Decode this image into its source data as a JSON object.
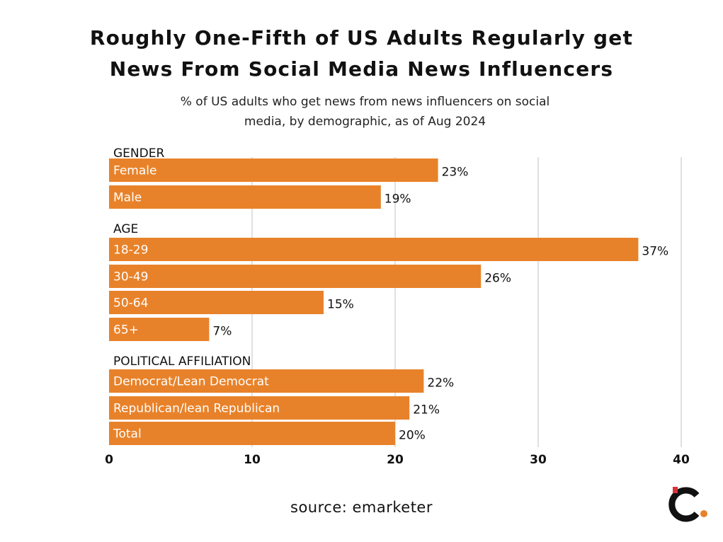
{
  "title_lines": [
    "Roughly One-Fifth of US Adults Regularly get",
    "News From Social Media News Influencers"
  ],
  "subtitle_lines": [
    "% of US adults who get news from news influencers on social",
    "media, by demographic, as of Aug 2024"
  ],
  "source": "source: emarketer",
  "colors": {
    "bar": "#E8822A",
    "grid": "#cccccc",
    "logo_dark": "#111111",
    "logo_orange": "#E8822A",
    "logo_red": "#D9323A"
  },
  "chart_data": {
    "type": "bar",
    "orientation": "horizontal",
    "xlim": [
      0,
      40
    ],
    "xticks": [
      0,
      10,
      20,
      30,
      40
    ],
    "grid": true,
    "groups": [
      {
        "name": "GENDER",
        "items": [
          {
            "label": "Female",
            "value": 23,
            "value_label": "23%"
          },
          {
            "label": "Male",
            "value": 19,
            "value_label": "19%"
          }
        ]
      },
      {
        "name": "AGE",
        "items": [
          {
            "label": "18-29",
            "value": 37,
            "value_label": "37%"
          },
          {
            "label": "30-49",
            "value": 26,
            "value_label": "26%"
          },
          {
            "label": "50-64",
            "value": 15,
            "value_label": "15%"
          },
          {
            "label": "65+",
            "value": 7,
            "value_label": "7%"
          }
        ]
      },
      {
        "name": "POLITICAL AFFILIATION",
        "items": [
          {
            "label": "Democrat/Lean Democrat",
            "value": 22,
            "value_label": "22%"
          },
          {
            "label": "Republican/lean Republican",
            "value": 21,
            "value_label": "21%"
          },
          {
            "label": "Total",
            "value": 20,
            "value_label": "20%"
          }
        ]
      }
    ]
  }
}
